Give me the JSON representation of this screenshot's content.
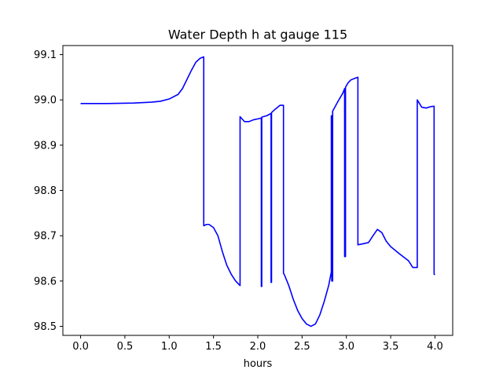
{
  "chart_data": {
    "type": "line",
    "title": "Water Depth h at gauge 115",
    "xlabel": "hours",
    "ylabel": "",
    "xlim": [
      -0.2,
      4.2
    ],
    "ylim": [
      98.48,
      99.12
    ],
    "xticks": [
      0.0,
      0.5,
      1.0,
      1.5,
      2.0,
      2.5,
      3.0,
      3.5,
      4.0
    ],
    "xtick_labels": [
      "0.0",
      "0.5",
      "1.0",
      "1.5",
      "2.0",
      "2.5",
      "3.0",
      "3.5",
      "4.0"
    ],
    "yticks": [
      98.5,
      98.6,
      98.7,
      98.8,
      98.9,
      99.0,
      99.1
    ],
    "ytick_labels": [
      "98.5",
      "98.6",
      "98.7",
      "98.8",
      "98.9",
      "99.0",
      "99.1"
    ],
    "grid": false,
    "series": [
      {
        "name": "h",
        "color": "#0000ff",
        "x": [
          0.0,
          0.3,
          0.6,
          0.8,
          0.9,
          1.0,
          1.1,
          1.15,
          1.2,
          1.25,
          1.3,
          1.35,
          1.39,
          1.39,
          1.42,
          1.45,
          1.5,
          1.55,
          1.6,
          1.65,
          1.7,
          1.75,
          1.8,
          1.8,
          1.85,
          1.9,
          1.95,
          2.0,
          2.04,
          2.04,
          2.045,
          2.045,
          2.1,
          2.15,
          2.15,
          2.155,
          2.155,
          2.2,
          2.25,
          2.29,
          2.29,
          2.3,
          2.35,
          2.4,
          2.45,
          2.5,
          2.55,
          2.6,
          2.65,
          2.7,
          2.75,
          2.8,
          2.83,
          2.83,
          2.835,
          2.835,
          2.845,
          2.845,
          2.9,
          2.96,
          2.98,
          2.98,
          2.99,
          2.99,
          3.02,
          3.05,
          3.1,
          3.13,
          3.13,
          3.18,
          3.25,
          3.3,
          3.35,
          3.4,
          3.45,
          3.5,
          3.55,
          3.6,
          3.7,
          3.75,
          3.8,
          3.8,
          3.85,
          3.9,
          3.95,
          3.99,
          3.99,
          4.0
        ],
        "y": [
          98.992,
          98.992,
          98.993,
          98.995,
          98.997,
          99.002,
          99.012,
          99.025,
          99.045,
          99.065,
          99.083,
          99.092,
          99.095,
          98.722,
          98.725,
          98.725,
          98.718,
          98.7,
          98.665,
          98.635,
          98.615,
          98.6,
          98.59,
          98.963,
          98.952,
          98.952,
          98.956,
          98.958,
          98.96,
          98.588,
          98.588,
          98.962,
          98.965,
          98.97,
          98.597,
          98.597,
          98.972,
          98.98,
          98.988,
          98.988,
          98.617,
          98.614,
          98.59,
          98.56,
          98.535,
          98.517,
          98.505,
          98.5,
          98.505,
          98.525,
          98.555,
          98.59,
          98.62,
          98.965,
          98.965,
          98.6,
          98.6,
          98.975,
          98.995,
          99.015,
          99.025,
          98.654,
          98.654,
          99.028,
          99.038,
          99.044,
          99.048,
          99.05,
          98.68,
          98.682,
          98.685,
          98.7,
          98.714,
          98.707,
          98.688,
          98.676,
          98.668,
          98.66,
          98.645,
          98.63,
          98.63,
          99.0,
          98.984,
          98.982,
          98.985,
          98.986,
          98.615,
          98.614
        ]
      }
    ]
  }
}
